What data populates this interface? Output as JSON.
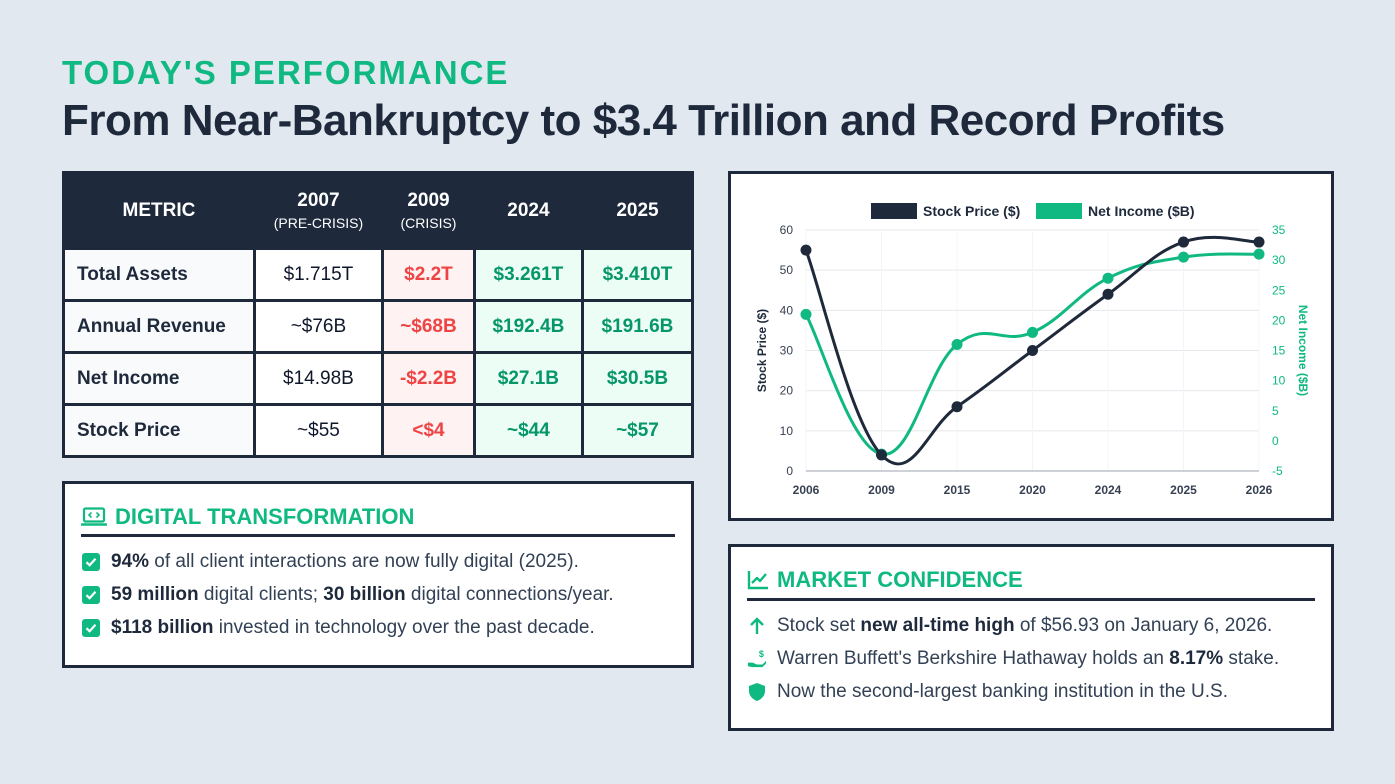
{
  "header": {
    "eyebrow": "TODAY'S PERFORMANCE",
    "title": "From Near-Bankruptcy to $3.4 Trillion and Record Profits"
  },
  "table": {
    "columns": [
      {
        "label": "METRIC",
        "sub": ""
      },
      {
        "label": "2007",
        "sub": "(PRE-CRISIS)"
      },
      {
        "label": "2009",
        "sub": "(CRISIS)"
      },
      {
        "label": "2024",
        "sub": ""
      },
      {
        "label": "2025",
        "sub": ""
      }
    ],
    "rows": [
      {
        "metric": "Total Assets",
        "values": [
          "$1.715T",
          "$2.2T",
          "$3.261T",
          "$3.410T"
        ]
      },
      {
        "metric": "Annual Revenue",
        "values": [
          "~$76B",
          "~$68B",
          "$192.4B",
          "$191.6B"
        ]
      },
      {
        "metric": "Net Income",
        "values": [
          "$14.98B",
          "-$2.2B",
          "$27.1B",
          "$30.5B"
        ]
      },
      {
        "metric": "Stock Price",
        "values": [
          "~$55",
          "<$4",
          "~$44",
          "~$57"
        ]
      }
    ]
  },
  "digital": {
    "title": "DIGITAL TRANSFORMATION",
    "icon": "laptop-code-icon",
    "items": [
      {
        "bold1": "94%",
        "text1": " of all client interactions are now fully digital (2025).",
        "bold2": "",
        "text2": ""
      },
      {
        "bold1": "59 million",
        "text1": " digital clients; ",
        "bold2": "30 billion",
        "text2": " digital connections/year."
      },
      {
        "bold1": "$118 billion",
        "text1": " invested in technology over the past decade.",
        "bold2": "",
        "text2": ""
      }
    ]
  },
  "market": {
    "title": "MARKET CONFIDENCE",
    "icon": "line-chart-icon",
    "items": [
      {
        "icon": "arrow-up-icon",
        "pre": "Stock set ",
        "bold": "new all-time high",
        "post": " of $56.93 on January 6, 2026."
      },
      {
        "icon": "hand-dollar-icon",
        "pre": "Warren Buffett's Berkshire Hathaway holds an ",
        "bold": "8.17%",
        "post": " stake."
      },
      {
        "icon": "shield-icon",
        "pre": "Now the second-largest banking institution in the U.S.",
        "bold": "",
        "post": ""
      }
    ]
  },
  "colors": {
    "navy": "#1e293b",
    "green": "#10b981",
    "red": "#ef4444",
    "background": "#e2e8f0"
  },
  "chart_data": {
    "type": "line",
    "x": [
      "2006",
      "2009",
      "2015",
      "2020",
      "2024",
      "2025",
      "2026"
    ],
    "series": [
      {
        "name": "Stock Price ($)",
        "axis": "left",
        "color": "#1e293b",
        "values": [
          55,
          4,
          16,
          30,
          44,
          57,
          57
        ]
      },
      {
        "name": "Net Income ($B)",
        "axis": "right",
        "color": "#10b981",
        "values": [
          21,
          -2.2,
          16,
          18,
          27,
          30.5,
          31
        ]
      }
    ],
    "ylabel": "Stock Price ($)",
    "ylabel_right": "Net Income ($B)",
    "ylim": [
      0,
      60
    ],
    "ylim_right": [
      -5,
      35
    ],
    "yticks": [
      0,
      10,
      20,
      30,
      40,
      50,
      60
    ],
    "yticks_right": [
      -5,
      0,
      5,
      10,
      15,
      20,
      25,
      30,
      35
    ],
    "legend": "top",
    "grid": true
  }
}
